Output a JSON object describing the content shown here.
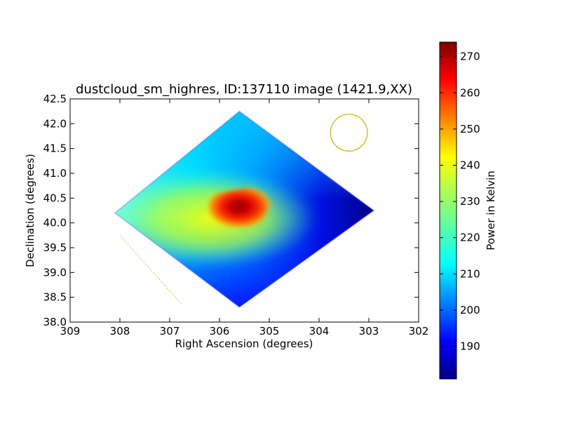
{
  "chart_data": {
    "type": "heatmap",
    "title": "dustcloud_sm_highres, ID:137110 image (1421.9,XX)",
    "xlabel": "Right Ascension (degrees)",
    "ylabel": "Declination (degrees)",
    "xlim": [
      309,
      302
    ],
    "ylim": [
      38.0,
      42.5
    ],
    "x_ticks": [
      "309",
      "308",
      "307",
      "306",
      "305",
      "304",
      "303",
      "302"
    ],
    "y_ticks": [
      "38.0",
      "38.5",
      "39.0",
      "39.5",
      "40.0",
      "40.5",
      "41.0",
      "41.5",
      "42.0",
      "42.5"
    ],
    "grid": false,
    "colormap": "jet",
    "colorbar": {
      "label": "Power in Kelvin",
      "range": [
        181,
        274
      ],
      "ticks": [
        "190",
        "200",
        "210",
        "220",
        "230",
        "240",
        "250",
        "260",
        "270"
      ]
    },
    "map_footprint": {
      "shape": "diamond",
      "vertices_ra_dec": [
        [
          308.1,
          40.2
        ],
        [
          305.6,
          42.25
        ],
        [
          302.9,
          40.25
        ],
        [
          305.6,
          38.3
        ]
      ]
    },
    "hot_spot": {
      "ra": 305.6,
      "dec": 40.3,
      "peak_kelvin": 274
    },
    "annotations": [
      {
        "kind": "circle",
        "ra": 303.4,
        "dec": 41.82,
        "radius_deg": 0.37,
        "color": "#bfbf00"
      },
      {
        "kind": "dotted-line",
        "from": [
          308.0,
          39.75
        ],
        "to": [
          306.75,
          38.35
        ],
        "color": "#bfbf00"
      }
    ]
  }
}
